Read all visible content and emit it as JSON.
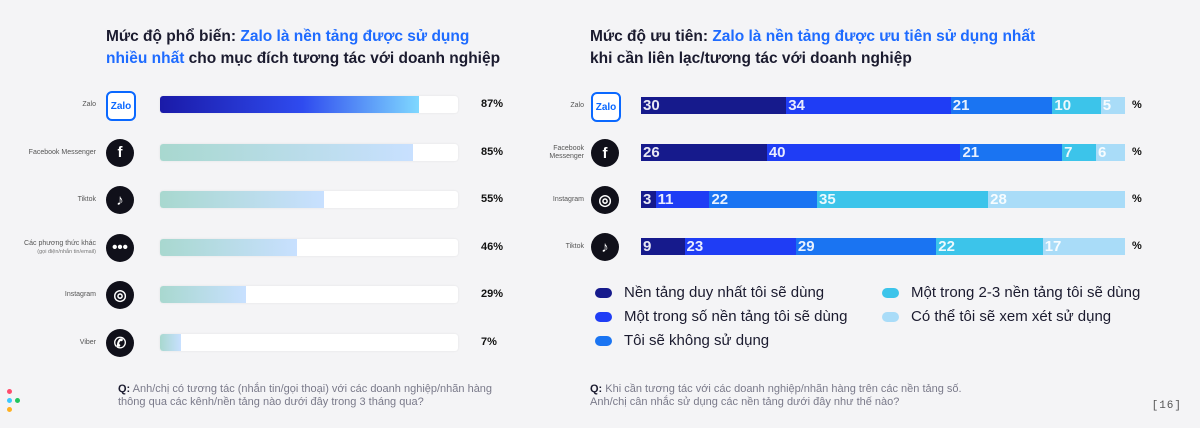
{
  "left": {
    "title_prefix": "Mức độ phổ biến: ",
    "title_hl1": "Zalo là nền tảng được sử dụng",
    "title_hl2": "nhiều nhất",
    "title_rest": " cho mục đích tương tác với doanh nghiệp",
    "question_prefix": "Q:",
    "question_line1": " Anh/chị có tương tác (nhắn tin/gọi thoại) với các doanh nghiệp/nhãn hàng",
    "question_line2": "thông qua các kênh/nền tảng nào dưới đây trong 3 tháng qua?"
  },
  "right": {
    "title_prefix": "Mức độ ưu tiên: ",
    "title_hl": "Zalo là nền tảng được ưu tiên sử dụng nhất",
    "title_line2": "khi cần liên lạc/tương tác với doanh nghiệp",
    "question_prefix": "Q:",
    "question_line1": " Khi cần tương tác với các doanh nghiệp/nhãn hàng trên các nền tảng số.",
    "question_line2": "Anh/chị cân nhắc sử dụng các nền tảng dưới đây như thế nào?"
  },
  "page_number": "[16]",
  "chart_data": [
    {
      "type": "bar",
      "orientation": "horizontal",
      "title": "Mức độ phổ biến: Zalo là nền tảng được sử dụng nhiều nhất cho mục đích tương tác với doanh nghiệp",
      "categories": [
        "Zalo",
        "Facebook Messenger",
        "Tiktok",
        "Các phương thức khác",
        "Instagram",
        "Viber"
      ],
      "category_sublabels": [
        "",
        "",
        "",
        "(gọi điện/nhắn tin/email)",
        "",
        ""
      ],
      "values": [
        87,
        85,
        55,
        46,
        29,
        7
      ],
      "value_labels": [
        "87%",
        "85%",
        "55%",
        "46%",
        "29%",
        "7%"
      ],
      "xlim": [
        0,
        100
      ],
      "colors": {
        "zalo": [
          "#1a1aa8",
          "#7fd8ff"
        ],
        "other": [
          "#a8d8cf",
          "#c8e0ff"
        ]
      }
    },
    {
      "type": "bar",
      "stacked": true,
      "orientation": "horizontal",
      "title": "Mức độ ưu tiên: Zalo là nền tảng được ưu tiên sử dụng nhất khi cần liên lạc/tương tác với doanh nghiệp",
      "categories": [
        "Zalo",
        "Facebook Messenger",
        "Instagram",
        "Tiktok"
      ],
      "unit_label": "%",
      "series": [
        {
          "name": "Nền tảng duy nhất tôi sẽ dùng",
          "color": "#161a8c",
          "values": [
            30,
            26,
            3,
            9
          ]
        },
        {
          "name": "Một trong số nền tảng tôi sẽ dùng",
          "color": "#1f3df5",
          "values": [
            34,
            40,
            11,
            23
          ]
        },
        {
          "name": "Tôi sẽ không sử dụng",
          "color": "#1a74f2",
          "values": [
            21,
            21,
            22,
            29
          ]
        },
        {
          "name": "Một trong 2-3 nền tảng tôi sẽ dùng",
          "color": "#3cc4ea",
          "values": [
            10,
            7,
            35,
            22
          ]
        },
        {
          "name": "Có thể tôi sẽ xem xét sử dụng",
          "color": "#a9dcf8",
          "values": [
            5,
            6,
            28,
            17
          ]
        }
      ],
      "legend_order": [
        0,
        3,
        1,
        4,
        2
      ]
    }
  ]
}
